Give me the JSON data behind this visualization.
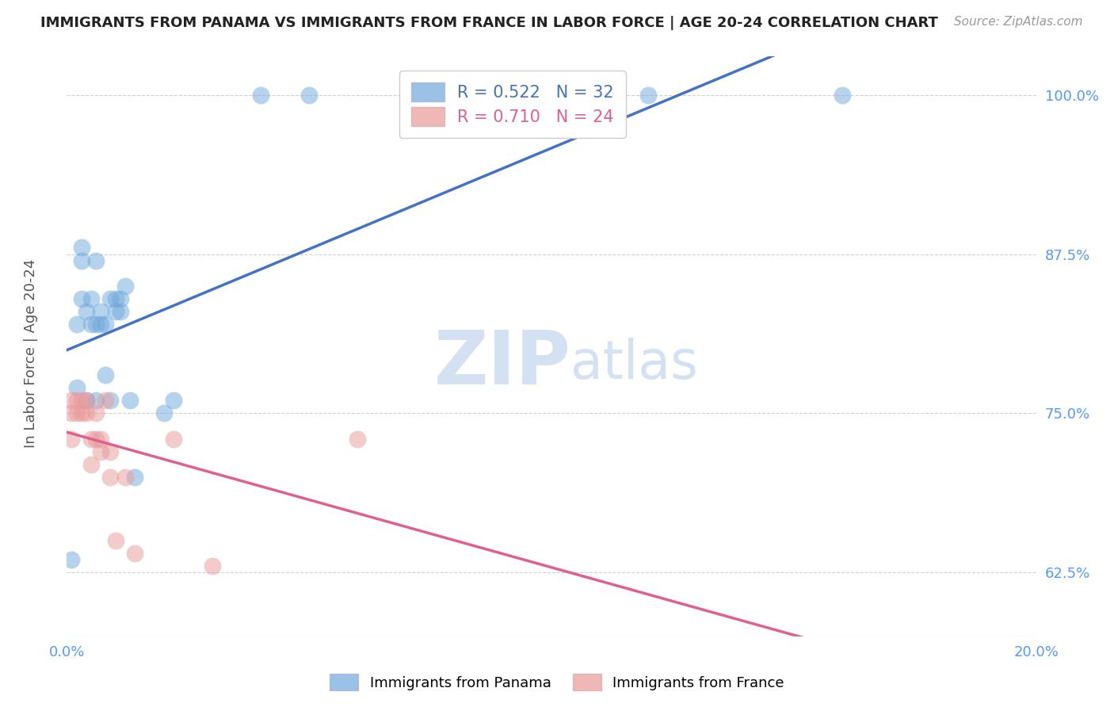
{
  "title": "IMMIGRANTS FROM PANAMA VS IMMIGRANTS FROM FRANCE IN LABOR FORCE | AGE 20-24 CORRELATION CHART",
  "source": "Source: ZipAtlas.com",
  "ylabel": "In Labor Force | Age 20-24",
  "xlim": [
    0.0,
    0.2
  ],
  "ylim": [
    0.575,
    1.03
  ],
  "xticks": [
    0.0,
    0.04,
    0.08,
    0.12,
    0.16,
    0.2
  ],
  "xticklabels_show": [
    "0.0%",
    "20.0%"
  ],
  "yticks": [
    0.625,
    0.75,
    0.875,
    1.0
  ],
  "yticklabels": [
    "62.5%",
    "75.0%",
    "87.5%",
    "100.0%"
  ],
  "panama_color": "#6fa8dc",
  "france_color": "#ea9999",
  "panama_line_color": "#4472c4",
  "france_line_color": "#e06090",
  "panama_R": 0.522,
  "panama_N": 32,
  "france_R": 0.71,
  "france_N": 24,
  "panama_scatter_x": [
    0.001,
    0.002,
    0.002,
    0.003,
    0.003,
    0.003,
    0.004,
    0.004,
    0.005,
    0.005,
    0.006,
    0.006,
    0.006,
    0.007,
    0.007,
    0.008,
    0.008,
    0.009,
    0.009,
    0.01,
    0.01,
    0.011,
    0.011,
    0.012,
    0.013,
    0.014,
    0.02,
    0.022,
    0.04,
    0.05,
    0.12,
    0.16
  ],
  "panama_scatter_y": [
    0.635,
    0.77,
    0.82,
    0.84,
    0.87,
    0.88,
    0.76,
    0.83,
    0.82,
    0.84,
    0.76,
    0.82,
    0.87,
    0.82,
    0.83,
    0.78,
    0.82,
    0.84,
    0.76,
    0.83,
    0.84,
    0.83,
    0.84,
    0.85,
    0.76,
    0.7,
    0.75,
    0.76,
    1.0,
    1.0,
    1.0,
    1.0
  ],
  "france_scatter_x": [
    0.001,
    0.001,
    0.001,
    0.002,
    0.002,
    0.003,
    0.003,
    0.004,
    0.004,
    0.005,
    0.005,
    0.006,
    0.006,
    0.007,
    0.007,
    0.008,
    0.009,
    0.009,
    0.01,
    0.012,
    0.014,
    0.022,
    0.03,
    0.06
  ],
  "france_scatter_y": [
    0.75,
    0.76,
    0.73,
    0.75,
    0.76,
    0.75,
    0.76,
    0.75,
    0.76,
    0.71,
    0.73,
    0.73,
    0.75,
    0.72,
    0.73,
    0.76,
    0.7,
    0.72,
    0.65,
    0.7,
    0.64,
    0.73,
    0.63,
    0.73
  ],
  "watermark_zip": "ZIP",
  "watermark_atlas": "atlas",
  "background_color": "#ffffff",
  "grid_color": "#d0d0d0",
  "tick_color": "#5599ff",
  "ylabel_color": "#555555",
  "title_color": "#222222",
  "source_color": "#999999"
}
